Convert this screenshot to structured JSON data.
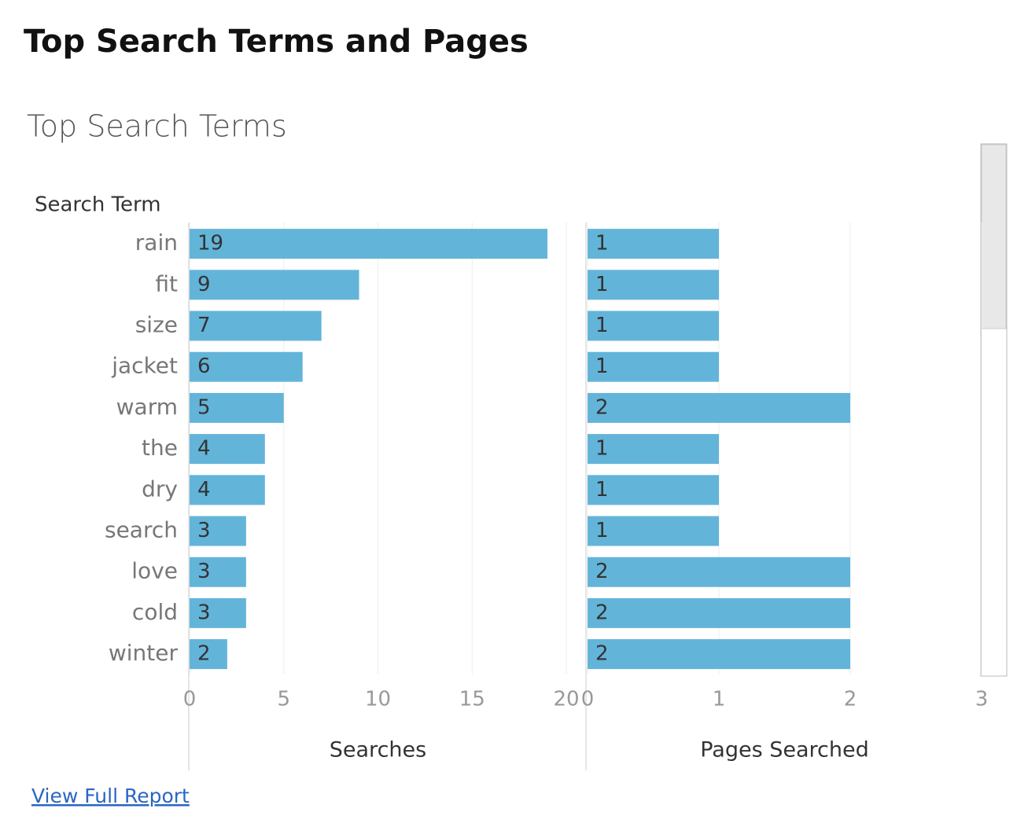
{
  "title": "Top Search Terms and Pages",
  "subtitle": "Top Search Terms",
  "link": "View Full Report",
  "chart_data": [
    {
      "type": "bar",
      "orientation": "horizontal",
      "category_title": "Search Term",
      "categories": [
        "rain",
        "fit",
        "size",
        "jacket",
        "warm",
        "the",
        "dry",
        "search",
        "love",
        "cold",
        "winter"
      ],
      "values": [
        19,
        9,
        7,
        6,
        5,
        4,
        4,
        3,
        3,
        3,
        2
      ],
      "color": "#63b4d9",
      "xlabel": "Searches",
      "xlim": [
        0,
        20
      ],
      "xticks": [
        0,
        5,
        10,
        15,
        20
      ],
      "grid": true
    },
    {
      "type": "bar",
      "orientation": "horizontal",
      "values": [
        1,
        1,
        1,
        1,
        2,
        1,
        1,
        1,
        2,
        2,
        2
      ],
      "color": "#63b4d9",
      "xlabel": "Pages Searched",
      "xlim": [
        0,
        3
      ],
      "xticks": [
        0,
        1,
        2,
        3
      ],
      "grid": true
    }
  ]
}
